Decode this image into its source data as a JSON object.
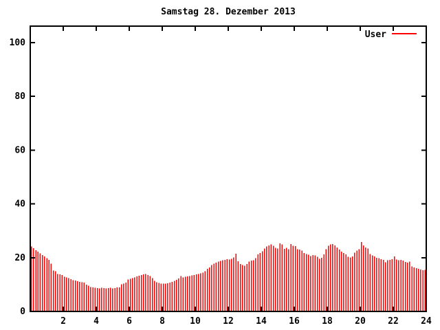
{
  "title": "Samstag 28. Dezember 2013",
  "legend": {
    "label": "User",
    "line_color": "#ff0000",
    "position": "top-right-inside"
  },
  "colors": {
    "background": "#ffffff",
    "axis": "#000000",
    "bars": "#ff0000"
  },
  "chart_data": {
    "type": "bar",
    "title": "Samstag 28. Dezember 2013",
    "xlabel": "",
    "ylabel": "",
    "xlim": [
      0,
      24
    ],
    "ylim": [
      0,
      106
    ],
    "x_ticks": [
      2,
      4,
      6,
      8,
      10,
      12,
      14,
      16,
      18,
      20,
      22,
      24
    ],
    "y_ticks": [
      0,
      20,
      40,
      60,
      80,
      100
    ],
    "grid": false,
    "legend_position": "top-right-inside",
    "series": [
      {
        "name": "User",
        "color": "#ff0000",
        "style": "impulses",
        "x_start_hour": 0.0667,
        "x_step_hour": 0.13333,
        "values": [
          24.2,
          23.5,
          22.8,
          22.2,
          21.6,
          21.0,
          20.4,
          19.8,
          19.2,
          17.8,
          15.2,
          15.0,
          14.0,
          13.8,
          13.6,
          12.9,
          12.7,
          12.4,
          12.0,
          11.7,
          11.5,
          11.2,
          11.0,
          10.9,
          10.8,
          10.0,
          9.6,
          9.1,
          8.9,
          8.8,
          8.7,
          8.6,
          8.8,
          8.7,
          8.6,
          8.7,
          8.8,
          8.6,
          8.7,
          8.9,
          9.0,
          10.1,
          10.4,
          10.7,
          11.9,
          12.2,
          12.4,
          12.6,
          13.0,
          13.3,
          13.6,
          13.8,
          13.9,
          13.6,
          13.2,
          12.4,
          11.4,
          10.9,
          10.6,
          10.4,
          10.3,
          10.4,
          10.5,
          10.7,
          11.0,
          11.4,
          11.8,
          12.3,
          13.2,
          12.7,
          12.9,
          13.1,
          13.2,
          13.4,
          13.6,
          13.8,
          14.0,
          14.2,
          14.4,
          15.0,
          15.8,
          16.4,
          17.2,
          17.8,
          18.2,
          18.6,
          18.8,
          19.0,
          19.2,
          19.4,
          19.3,
          19.6,
          20.1,
          21.5,
          18.7,
          17.6,
          17.2,
          17.0,
          17.7,
          18.5,
          18.9,
          19.1,
          19.8,
          21.2,
          21.8,
          22.4,
          23.4,
          24.2,
          24.6,
          25.0,
          24.4,
          23.6,
          23.4,
          25.3,
          25.0,
          23.3,
          23.6,
          23.2,
          25.1,
          24.4,
          24.3,
          23.2,
          23.0,
          22.6,
          21.8,
          21.4,
          21.1,
          20.6,
          21.0,
          20.8,
          20.3,
          19.6,
          19.9,
          21.2,
          23.1,
          24.4,
          24.9,
          25.1,
          24.6,
          23.8,
          23.0,
          22.3,
          21.7,
          21.2,
          20.3,
          20.1,
          20.4,
          21.9,
          22.6,
          23.1,
          25.8,
          24.6,
          23.8,
          23.4,
          21.3,
          20.9,
          20.4,
          20.0,
          19.8,
          19.4,
          19.2,
          18.3,
          19.0,
          19.2,
          19.5,
          20.4,
          19.3,
          19.0,
          19.2,
          18.9,
          18.4,
          18.2,
          18.6,
          16.8,
          16.4,
          16.1,
          15.8,
          15.6,
          15.3,
          15.5
        ]
      }
    ]
  }
}
